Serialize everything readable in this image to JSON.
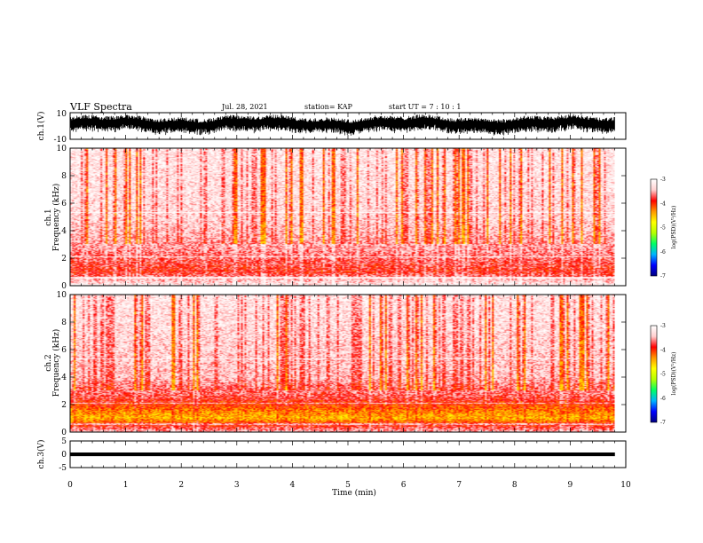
{
  "header": {
    "title": "VLF Spectra",
    "date": "Jul. 28, 2021",
    "station": "station= KAP",
    "start": "start UT =  7 : 10 : 1"
  },
  "chart_data": [
    {
      "panel": "ch1_waveform",
      "type": "line",
      "ylabel": "ch.1(V)",
      "ylim": [
        -10,
        10
      ],
      "yticks": [
        "10",
        "-10"
      ],
      "xlim": [
        0,
        10
      ],
      "data_extent_min": 9.8,
      "series": [
        {
          "description_level": "noisy signal mostly between -6 and 10 V"
        }
      ]
    },
    {
      "panel": "ch1_spectrogram",
      "type": "heatmap",
      "ylabel": "ch.1\nFrequency (kHz)",
      "ylim": [
        0,
        10
      ],
      "yticks": [
        "0",
        "2",
        "4",
        "6",
        "8",
        "10"
      ],
      "xlim": [
        0,
        10
      ],
      "data_extent_min": 9.8,
      "colorbar": {
        "label": "log(PSD)(V²/Hz)",
        "range": [
          -7,
          -3
        ],
        "ticks": [
          "-3",
          "-4",
          "-5",
          "-6",
          "-7"
        ]
      },
      "intensity_profile": [
        {
          "freq_khz": 0.0,
          "level": -3.2
        },
        {
          "freq_khz": 1.0,
          "level": -3.9
        },
        {
          "freq_khz": 2.0,
          "level": -3.7
        },
        {
          "freq_khz": 3.0,
          "level": -3.5
        },
        {
          "freq_khz": 5.0,
          "level": -3.3
        },
        {
          "freq_khz": 10.0,
          "level": -3.2
        }
      ]
    },
    {
      "panel": "ch2_spectrogram",
      "type": "heatmap",
      "ylabel": "ch.2\nFrequency (kHz)",
      "ylim": [
        0,
        10
      ],
      "yticks": [
        "0",
        "2",
        "4",
        "6",
        "8",
        "10"
      ],
      "xlim": [
        0,
        10
      ],
      "data_extent_min": 9.8,
      "colorbar": {
        "label": "log(PSD)(V²/Hz)",
        "range": [
          -7,
          -3
        ],
        "ticks": [
          "-3",
          "-4",
          "-5",
          "-6",
          "-7"
        ]
      },
      "intensity_profile": [
        {
          "freq_khz": 0.0,
          "level": -3.5
        },
        {
          "freq_khz": 1.0,
          "level": -4.5
        },
        {
          "freq_khz": 1.5,
          "level": -4.3
        },
        {
          "freq_khz": 2.5,
          "level": -3.8
        },
        {
          "freq_khz": 4.0,
          "level": -3.4
        },
        {
          "freq_khz": 10.0,
          "level": -3.2
        }
      ]
    },
    {
      "panel": "ch3_waveform",
      "type": "line",
      "ylabel": "ch.3(V)",
      "ylim": [
        -5,
        5
      ],
      "yticks": [
        "5",
        "0",
        "-5"
      ],
      "xlim": [
        0,
        10
      ],
      "data_extent_min": 9.8,
      "series": [
        {
          "description_level": "steady signal centred near 0 V, amplitude about ±0.6 V"
        }
      ]
    }
  ],
  "xaxis": {
    "label": "Time (min)",
    "ticks": [
      "0",
      "1",
      "2",
      "3",
      "4",
      "5",
      "6",
      "7",
      "8",
      "9",
      "10"
    ]
  },
  "colors": {
    "colormap": [
      "#000080",
      "#0000ff",
      "#00b4ff",
      "#00ff64",
      "#b4ff00",
      "#ffff00",
      "#ff9600",
      "#ff0000",
      "#ffd0d0",
      "#ffffff"
    ],
    "line": "#000000"
  }
}
